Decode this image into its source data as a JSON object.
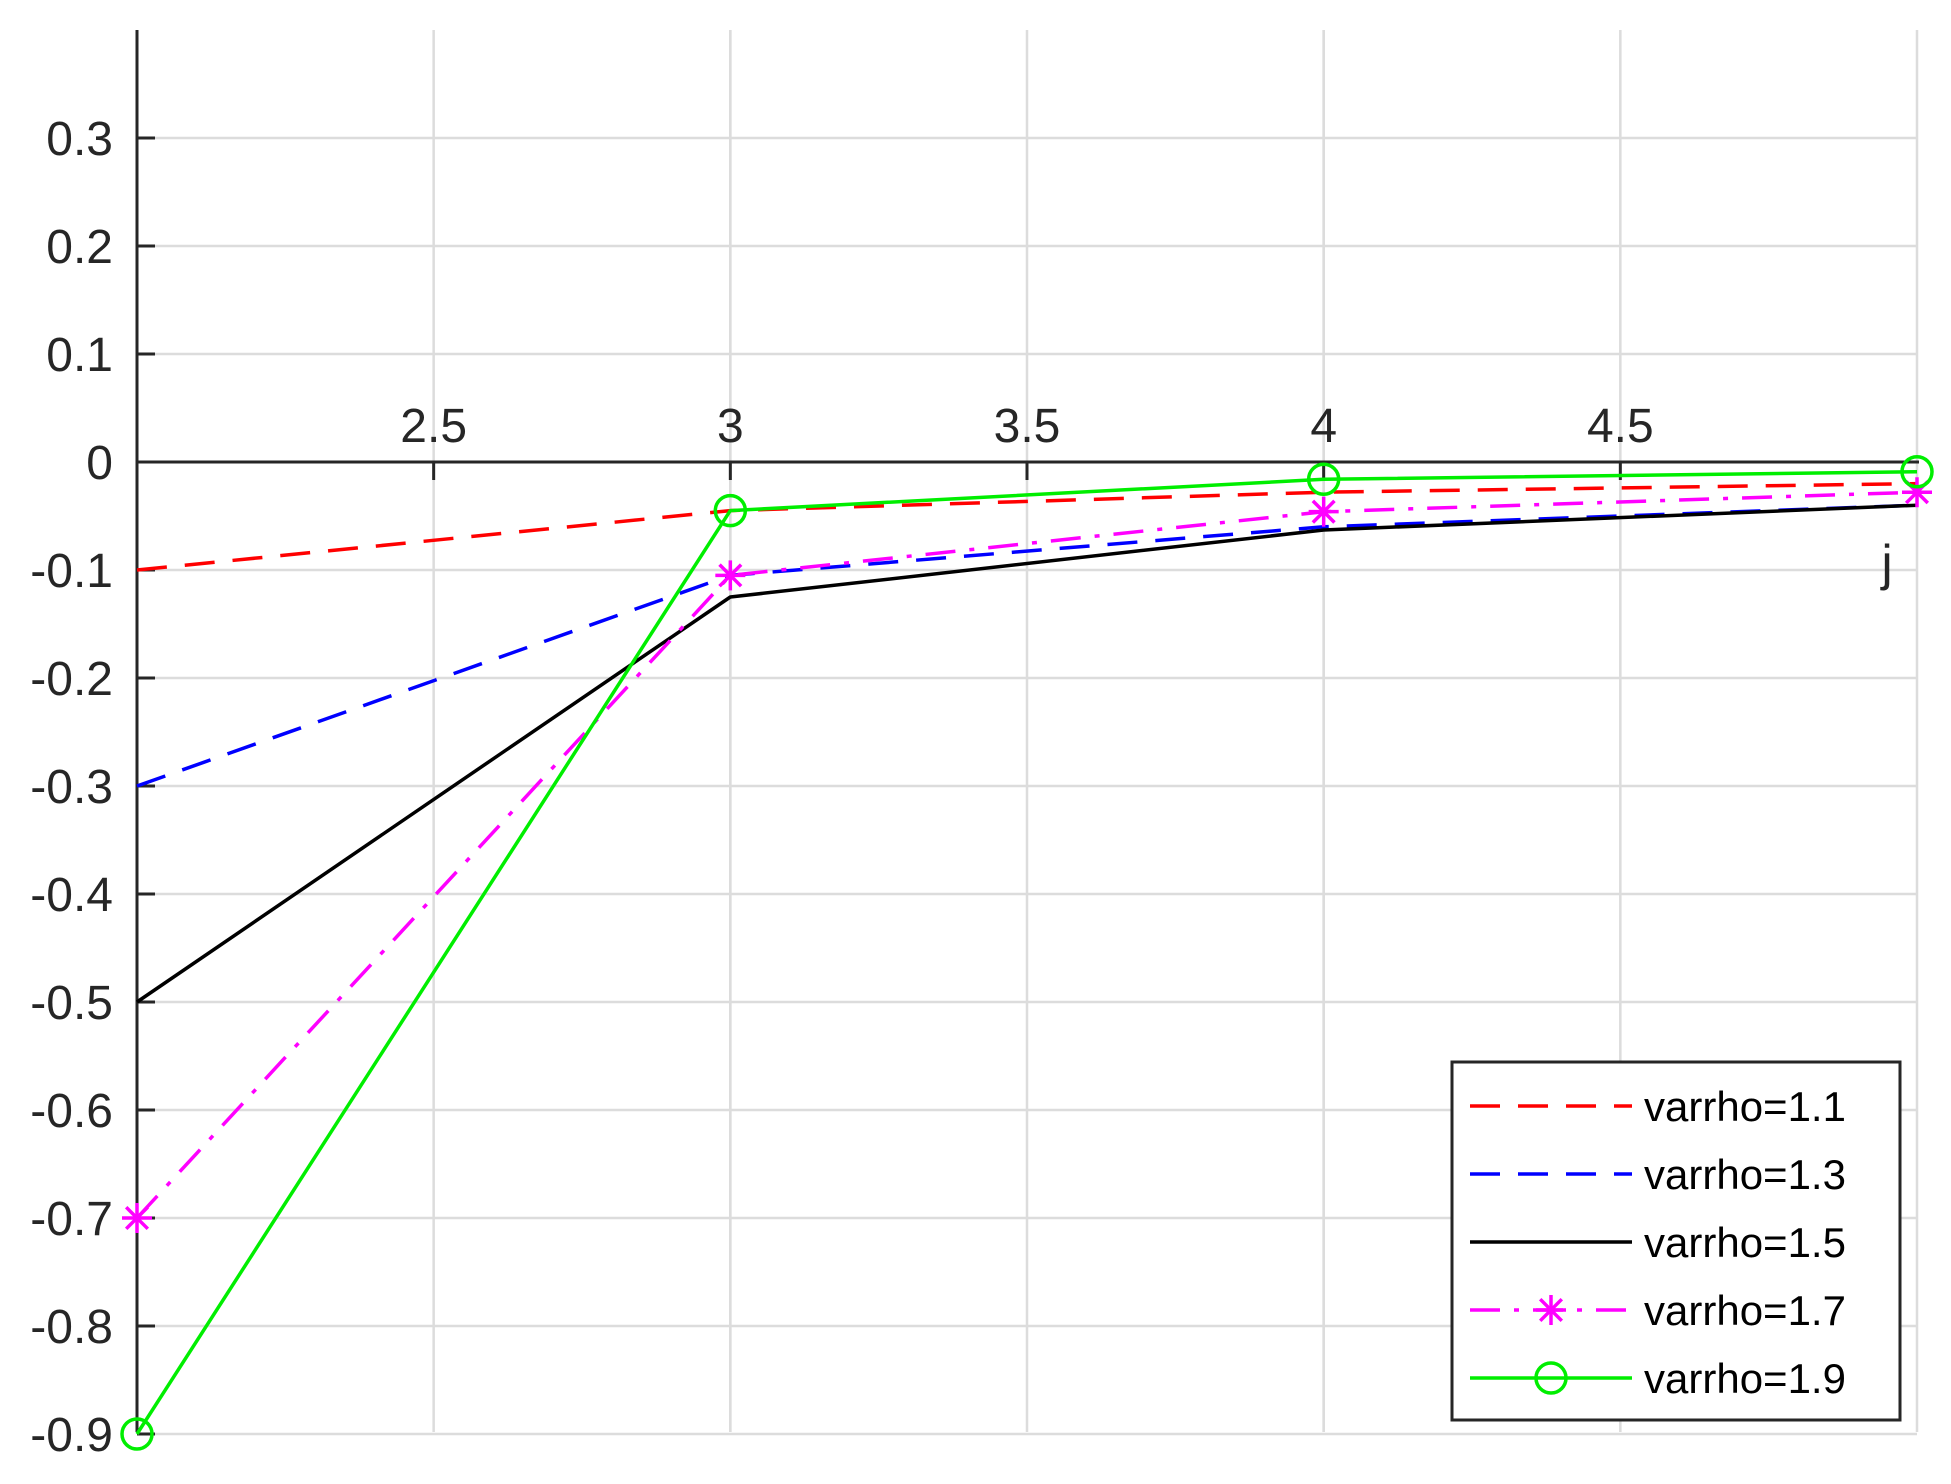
{
  "chart_data": {
    "type": "line",
    "title": "",
    "xlabel": "j",
    "ylabel": "",
    "xlim": [
      2,
      5
    ],
    "ylim": [
      -0.9,
      0.4
    ],
    "x_axis_crosses_y_at": 0,
    "grid": true,
    "legend_position": "bottom-right",
    "x_ticks": [
      2.5,
      3,
      3.5,
      4,
      4.5
    ],
    "x_tick_labels": [
      "2.5",
      "3",
      "3.5",
      "4",
      "4.5"
    ],
    "y_ticks": [
      0.3,
      0.2,
      0.1,
      0,
      -0.1,
      -0.2,
      -0.3,
      -0.4,
      -0.5,
      -0.6,
      -0.7,
      -0.8,
      -0.9
    ],
    "y_tick_labels": [
      "0.3",
      "0.2",
      "0.1",
      "0",
      "-0.1",
      "-0.2",
      "-0.3",
      "-0.4",
      "-0.5",
      "-0.6",
      "-0.7",
      "-0.8",
      "-0.9"
    ],
    "x": [
      2,
      3,
      4,
      5
    ],
    "series": [
      {
        "name": "varrho=1.1",
        "values": [
          -0.1,
          -0.045,
          -0.028,
          -0.02
        ],
        "color": "#ff0000",
        "line_style": "dashed",
        "marker": "none"
      },
      {
        "name": "varrho=1.3",
        "values": [
          -0.3,
          -0.105,
          -0.06,
          -0.04
        ],
        "color": "#0000ff",
        "line_style": "dashed",
        "marker": "none"
      },
      {
        "name": "varrho=1.5",
        "values": [
          -0.5,
          -0.125,
          -0.063,
          -0.04
        ],
        "color": "#000000",
        "line_style": "solid",
        "marker": "none"
      },
      {
        "name": "varrho=1.7",
        "values": [
          -0.7,
          -0.105,
          -0.046,
          -0.028
        ],
        "color": "#ff00ff",
        "line_style": "dashdot",
        "marker": "asterisk"
      },
      {
        "name": "varrho=1.9",
        "values": [
          -0.9,
          -0.045,
          -0.016,
          -0.009
        ],
        "color": "#00ee00",
        "line_style": "solid",
        "marker": "circle"
      }
    ]
  }
}
